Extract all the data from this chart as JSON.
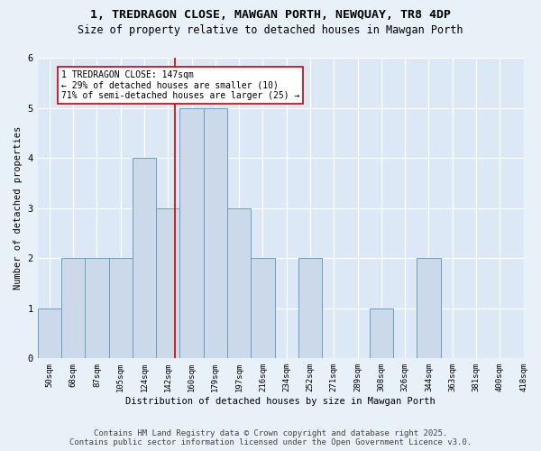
{
  "title_line1": "1, TREDRAGON CLOSE, MAWGAN PORTH, NEWQUAY, TR8 4DP",
  "title_line2": "Size of property relative to detached houses in Mawgan Porth",
  "xlabel": "Distribution of detached houses by size in Mawgan Porth",
  "ylabel": "Number of detached properties",
  "bin_labels": [
    "50sqm",
    "68sqm",
    "87sqm",
    "105sqm",
    "124sqm",
    "142sqm",
    "160sqm",
    "179sqm",
    "197sqm",
    "216sqm",
    "234sqm",
    "252sqm",
    "271sqm",
    "289sqm",
    "308sqm",
    "326sqm",
    "344sqm",
    "363sqm",
    "381sqm",
    "400sqm",
    "418sqm"
  ],
  "bar_heights": [
    1,
    2,
    2,
    2,
    4,
    3,
    5,
    5,
    3,
    2,
    0,
    2,
    0,
    0,
    1,
    0,
    2,
    0,
    0,
    0
  ],
  "bar_color": "#ccd9ea",
  "bar_edge_color": "#6a9ec0",
  "subject_bin_index": 5,
  "subject_line_color": "#cc0000",
  "annotation_text": "1 TREDRAGON CLOSE: 147sqm\n← 29% of detached houses are smaller (10)\n71% of semi-detached houses are larger (25) →",
  "annotation_box_color": "#ffffff",
  "annotation_box_edge": "#cc0000",
  "ylim": [
    0,
    6
  ],
  "yticks": [
    0,
    1,
    2,
    3,
    4,
    5,
    6
  ],
  "background_color": "#dce8f5",
  "fig_background_color": "#e8f0f8",
  "footer_line1": "Contains HM Land Registry data © Crown copyright and database right 2025.",
  "footer_line2": "Contains public sector information licensed under the Open Government Licence v3.0.",
  "grid_color": "#ffffff",
  "title_fontsize": 9.5,
  "subtitle_fontsize": 8.5,
  "axis_label_fontsize": 7.5,
  "tick_fontsize": 6.5,
  "annotation_fontsize": 7.0,
  "footer_fontsize": 6.5
}
